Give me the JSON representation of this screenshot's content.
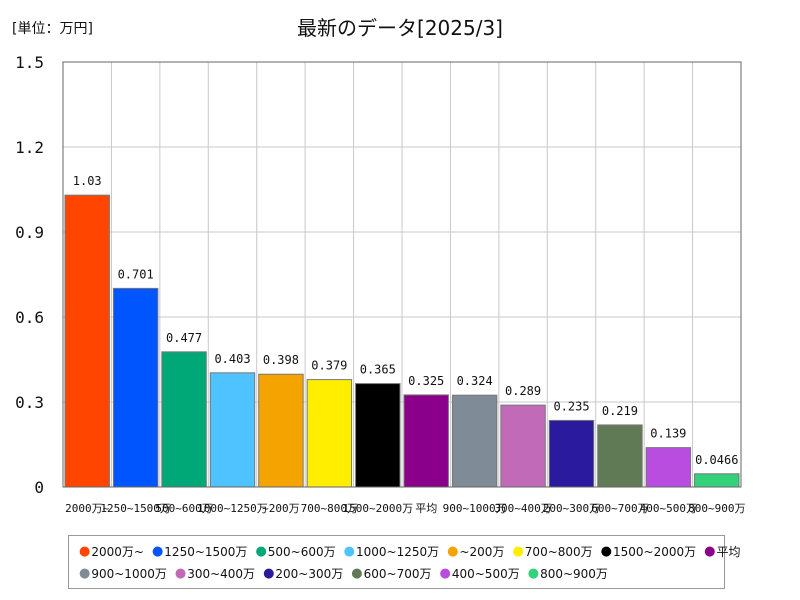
{
  "unit_label": "[単位：万円]",
  "chart_data": {
    "type": "bar",
    "title": "最新のデータ[2025/3]",
    "ylim": [
      0,
      1.5
    ],
    "yticks": [
      "0",
      "0.3",
      "0.6",
      "0.9",
      "1.2",
      "1.5"
    ],
    "ytick_values": [
      0,
      0.3,
      0.6,
      0.9,
      1.2,
      1.5
    ],
    "grid": true,
    "legend_position": "bottom",
    "categories": [
      "2000万~",
      "1250~1500万",
      "500~600万",
      "1000~1250万",
      "~200万",
      "700~800万",
      "1500~2000万",
      "平均",
      "900~1000万",
      "300~400万",
      "200~300万",
      "600~700万",
      "400~500万",
      "800~900万"
    ],
    "values": [
      1.03,
      0.701,
      0.477,
      0.403,
      0.398,
      0.379,
      0.365,
      0.325,
      0.324,
      0.289,
      0.235,
      0.219,
      0.139,
      0.0466
    ],
    "value_labels": [
      "1.03",
      "0.701",
      "0.477",
      "0.403",
      "0.398",
      "0.379",
      "0.365",
      "0.325",
      "0.324",
      "0.289",
      "0.235",
      "0.219",
      "0.139",
      "0.0466"
    ],
    "colors": [
      "#ff4500",
      "#0055ff",
      "#00a878",
      "#4fc3ff",
      "#f5a300",
      "#ffee00",
      "#000000",
      "#8b008b",
      "#7f8c98",
      "#c06ab8",
      "#2a1a9e",
      "#5f7a55",
      "#b84de0",
      "#33d17a"
    ]
  },
  "legend": {
    "rows": [
      [
        {
          "label": "2000万~",
          "color": "#ff4500"
        },
        {
          "label": "1250~1500万",
          "color": "#0055ff"
        },
        {
          "label": "500~600万",
          "color": "#00a878"
        },
        {
          "label": "1000~1250万",
          "color": "#4fc3ff"
        },
        {
          "label": "~200万",
          "color": "#f5a300"
        },
        {
          "label": "700~800万",
          "color": "#ffee00"
        },
        {
          "label": "1500~2000万",
          "color": "#000000"
        },
        {
          "label": "平均",
          "color": "#8b008b"
        }
      ],
      [
        {
          "label": "900~1000万",
          "color": "#7f8c98"
        },
        {
          "label": "300~400万",
          "color": "#c06ab8"
        },
        {
          "label": "200~300万",
          "color": "#2a1a9e"
        },
        {
          "label": "600~700万",
          "color": "#5f7a55"
        },
        {
          "label": "400~500万",
          "color": "#b84de0"
        },
        {
          "label": "800~900万",
          "color": "#33d17a"
        }
      ]
    ]
  }
}
